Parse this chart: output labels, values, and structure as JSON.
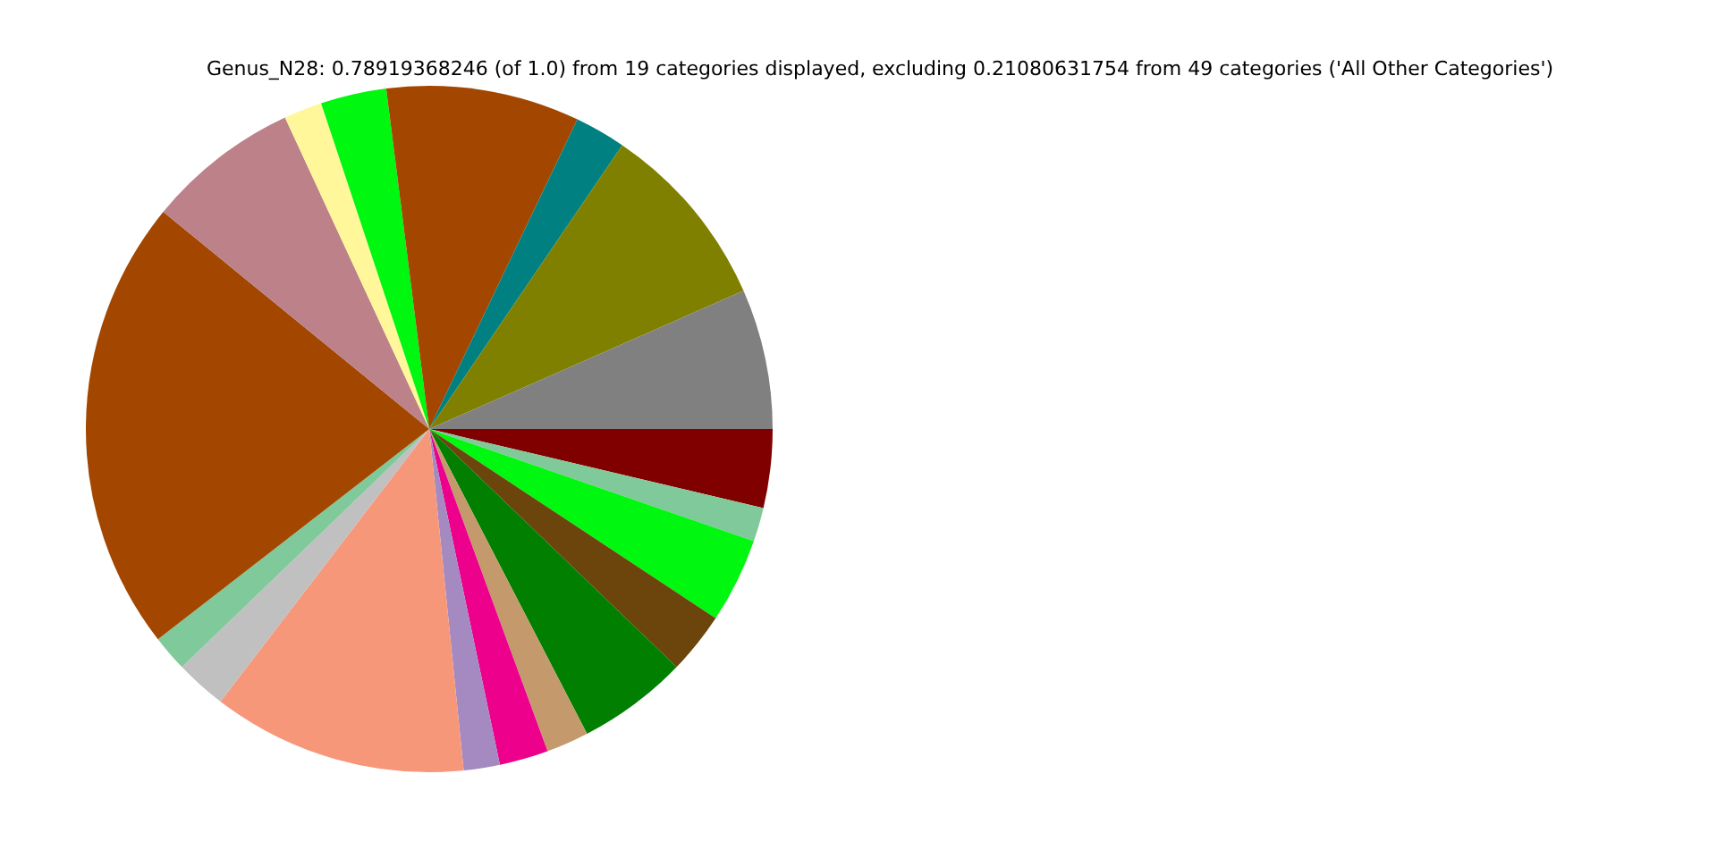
{
  "chart_data": {
    "type": "pie",
    "title": "Genus_N28: 0.78919368246 (of 1.0) from 19 categories displayed, excluding 0.21080631754 from 49 categories ('All Other Categories')",
    "categories": [
      null,
      null,
      null,
      null,
      null,
      null,
      null,
      null,
      null,
      null,
      null,
      null,
      null,
      null,
      null,
      null,
      null,
      null,
      null
    ],
    "values": [
      3.7,
      1.6,
      4.0,
      2.9,
      5.2,
      2.0,
      2.3,
      1.7,
      12.0,
      2.4,
      1.7,
      21.4,
      7.2,
      1.8,
      3.1,
      9.1,
      2.4,
      8.9,
      6.6
    ],
    "colors": [
      "#800000",
      "#80c99a",
      "#00f70f",
      "#6b450c",
      "#007f00",
      "#c49a6c",
      "#ec008c",
      "#a48ac1",
      "#f7977a",
      "#c0c0c0",
      "#80c99a",
      "#a34700",
      "#bc8189",
      "#fff799",
      "#00f70f",
      "#a34700",
      "#008080",
      "#808000",
      "#808080"
    ],
    "legend": false
  }
}
